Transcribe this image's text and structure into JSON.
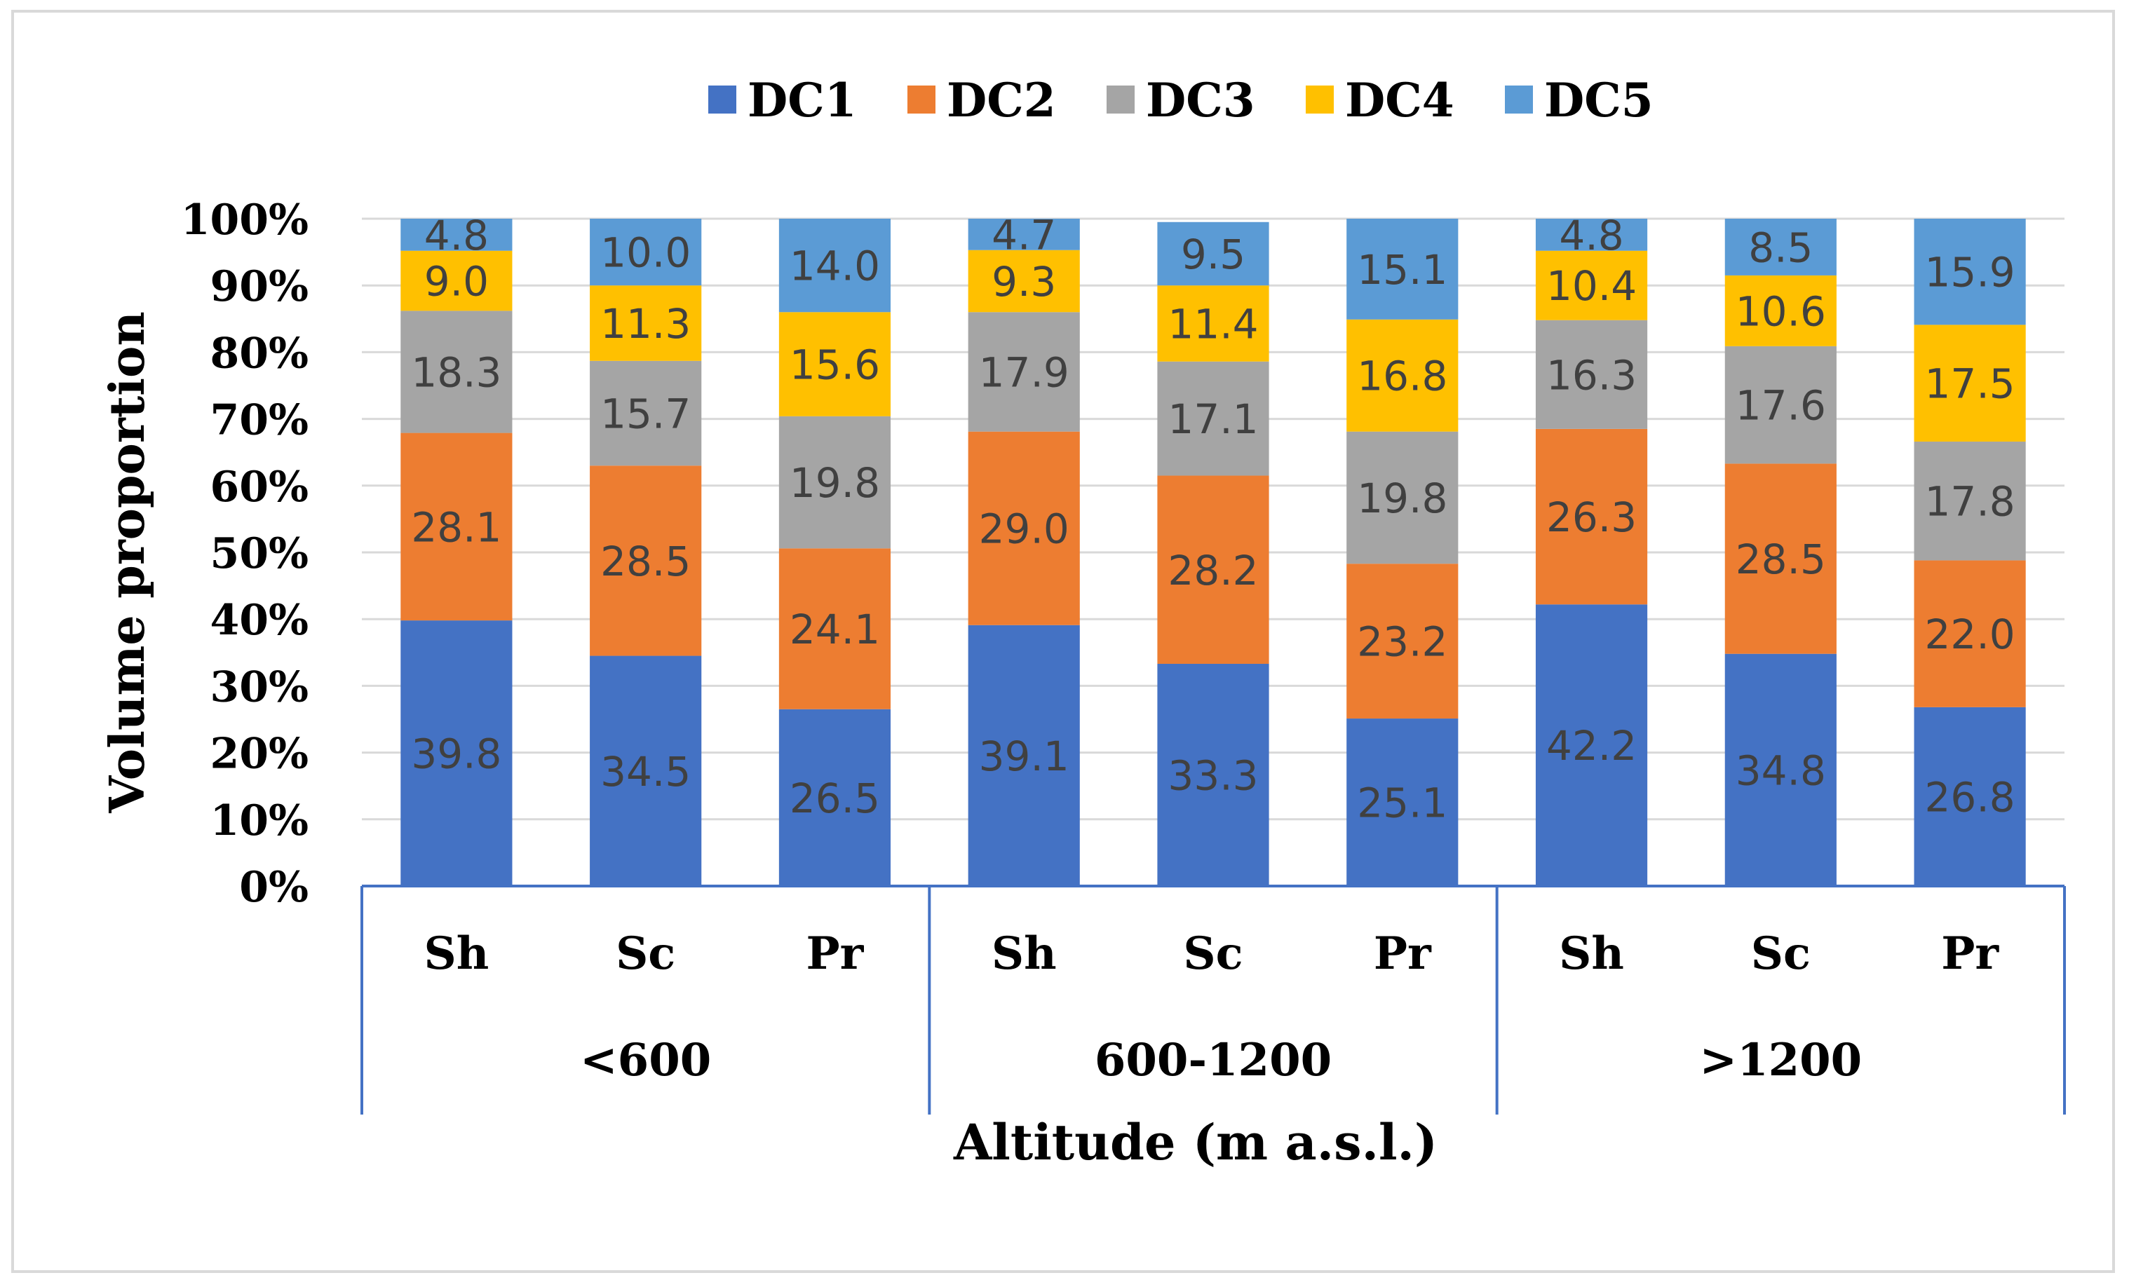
{
  "chart_data": {
    "type": "bar",
    "stacked": true,
    "normalized": true,
    "title": "",
    "xlabel": "Altitude (m a.s.l.)",
    "ylabel": "Volume proportion",
    "ylim": [
      0,
      100
    ],
    "y_ticks": [
      "0%",
      "10%",
      "20%",
      "30%",
      "40%",
      "50%",
      "60%",
      "70%",
      "80%",
      "90%",
      "100%"
    ],
    "groups": [
      {
        "label": "<600",
        "categories": [
          "Sh",
          "Sc",
          "Pr"
        ]
      },
      {
        "label": "600-1200",
        "categories": [
          "Sh",
          "Sc",
          "Pr"
        ]
      },
      {
        "label": ">1200",
        "categories": [
          "Sh",
          "Sc",
          "Pr"
        ]
      }
    ],
    "legend_position": "top-center",
    "series": [
      {
        "name": "DC1",
        "color": "#4472C4",
        "label_color": "#404040",
        "values": [
          39.8,
          34.5,
          26.5,
          39.1,
          33.3,
          25.1,
          42.2,
          34.8,
          26.8
        ],
        "labels": [
          "39.8",
          "34.5",
          "26.5",
          "39.1",
          "33.3",
          "25.1",
          "42.2",
          "34.8",
          "26.8"
        ]
      },
      {
        "name": "DC2",
        "color": "#ED7D31",
        "label_color": "#404040",
        "values": [
          28.1,
          28.5,
          24.1,
          29.0,
          28.2,
          23.2,
          26.3,
          28.5,
          22.0
        ],
        "labels": [
          "28.1",
          "28.5",
          "24.1",
          "29.0",
          "28.2",
          "23.2",
          "26.3",
          "28.5",
          "22.0"
        ]
      },
      {
        "name": "DC3",
        "color": "#A5A5A5",
        "label_color": "#404040",
        "values": [
          18.3,
          15.7,
          19.8,
          17.9,
          17.1,
          19.8,
          16.3,
          17.6,
          17.8
        ],
        "labels": [
          "18.3",
          "15.7",
          "19.8",
          "17.9",
          "17.1",
          "19.8",
          "16.3",
          "17.6",
          "17.8"
        ]
      },
      {
        "name": "DC4",
        "color": "#FFC000",
        "label_color": "#404040",
        "values": [
          9.0,
          11.3,
          15.6,
          9.3,
          11.4,
          16.8,
          10.4,
          10.6,
          17.5
        ],
        "labels": [
          "9.0",
          "11.3",
          "15.6",
          "9.3",
          "11.4",
          "16.8",
          "10.4",
          "10.6",
          "17.5"
        ]
      },
      {
        "name": "DC5",
        "color": "#5B9BD5",
        "label_color": "#404040",
        "values": [
          4.8,
          10.0,
          14.0,
          4.7,
          9.5,
          15.1,
          4.8,
          8.5,
          15.9
        ],
        "labels": [
          "4.8",
          "10.0",
          "14.0",
          "4.7",
          "9.5",
          "15.1",
          "4.8",
          "8.5",
          "15.9"
        ]
      }
    ],
    "colors": {
      "gridline": "#d9d9d9",
      "axis_line": "#4472C4",
      "text": "#000000"
    }
  }
}
